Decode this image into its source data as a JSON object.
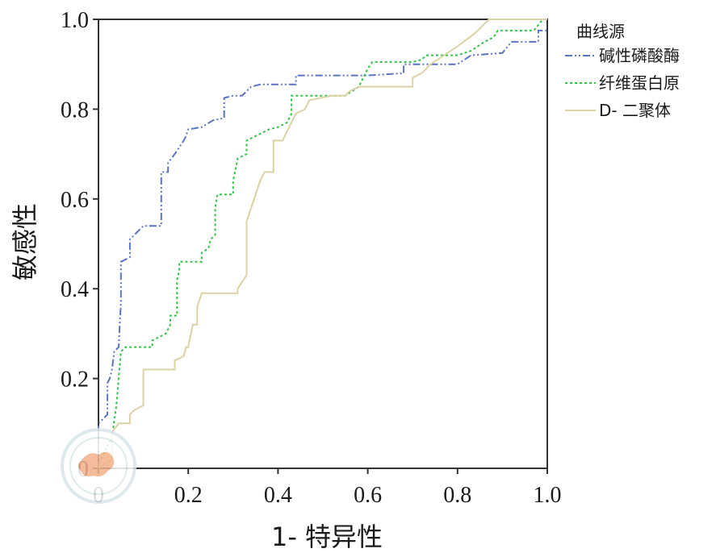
{
  "chart_data": {
    "type": "line",
    "title": "",
    "xlabel": "1- 特异性",
    "ylabel": "敏感性",
    "xlim": [
      0,
      1
    ],
    "ylim": [
      0,
      1
    ],
    "x_ticks": [
      "0",
      "0.2",
      "0.4",
      "0.6",
      "0.8",
      "1.0"
    ],
    "y_ticks": [
      "0",
      "0.2",
      "0.4",
      "0.6",
      "0.8",
      "1.0"
    ],
    "grid": false,
    "legend": {
      "title": "曲线源",
      "position": "right"
    },
    "series": [
      {
        "name": "碱性磷酸酶",
        "color": "#5b73c4",
        "dash": "dash-dot-dot",
        "points": [
          [
            0,
            0
          ],
          [
            0,
            0.1
          ],
          [
            0.01,
            0.11
          ],
          [
            0.02,
            0.12
          ],
          [
            0.02,
            0.19
          ],
          [
            0.025,
            0.2
          ],
          [
            0.03,
            0.22
          ],
          [
            0.035,
            0.26
          ],
          [
            0.045,
            0.27
          ],
          [
            0.05,
            0.37
          ],
          [
            0.05,
            0.46
          ],
          [
            0.07,
            0.47
          ],
          [
            0.07,
            0.51
          ],
          [
            0.08,
            0.52
          ],
          [
            0.09,
            0.53
          ],
          [
            0.1,
            0.54
          ],
          [
            0.14,
            0.54
          ],
          [
            0.14,
            0.66
          ],
          [
            0.155,
            0.66
          ],
          [
            0.155,
            0.68
          ],
          [
            0.17,
            0.7
          ],
          [
            0.19,
            0.73
          ],
          [
            0.195,
            0.74
          ],
          [
            0.2,
            0.755
          ],
          [
            0.23,
            0.76
          ],
          [
            0.255,
            0.775
          ],
          [
            0.28,
            0.78
          ],
          [
            0.28,
            0.825
          ],
          [
            0.3,
            0.83
          ],
          [
            0.32,
            0.83
          ],
          [
            0.34,
            0.85
          ],
          [
            0.36,
            0.855
          ],
          [
            0.44,
            0.855
          ],
          [
            0.44,
            0.875
          ],
          [
            0.5,
            0.875
          ],
          [
            0.6,
            0.875
          ],
          [
            0.68,
            0.88
          ],
          [
            0.68,
            0.9
          ],
          [
            0.8,
            0.9
          ],
          [
            0.83,
            0.92
          ],
          [
            0.9,
            0.925
          ],
          [
            0.92,
            0.95
          ],
          [
            0.98,
            0.95
          ],
          [
            0.98,
            0.975
          ],
          [
            1.0,
            0.975
          ]
        ]
      },
      {
        "name": "纤维蛋白原",
        "color": "#33c24a",
        "dash": "dotted",
        "points": [
          [
            0,
            0
          ],
          [
            0,
            0.01
          ],
          [
            0.03,
            0.07
          ],
          [
            0.04,
            0.14
          ],
          [
            0.045,
            0.2
          ],
          [
            0.05,
            0.26
          ],
          [
            0.06,
            0.27
          ],
          [
            0.12,
            0.27
          ],
          [
            0.12,
            0.285
          ],
          [
            0.13,
            0.29
          ],
          [
            0.15,
            0.3
          ],
          [
            0.16,
            0.32
          ],
          [
            0.16,
            0.34
          ],
          [
            0.175,
            0.34
          ],
          [
            0.175,
            0.42
          ],
          [
            0.18,
            0.44
          ],
          [
            0.18,
            0.46
          ],
          [
            0.23,
            0.46
          ],
          [
            0.23,
            0.48
          ],
          [
            0.245,
            0.49
          ],
          [
            0.25,
            0.51
          ],
          [
            0.26,
            0.52
          ],
          [
            0.26,
            0.58
          ],
          [
            0.265,
            0.61
          ],
          [
            0.3,
            0.61
          ],
          [
            0.3,
            0.64
          ],
          [
            0.31,
            0.69
          ],
          [
            0.33,
            0.7
          ],
          [
            0.33,
            0.73
          ],
          [
            0.35,
            0.74
          ],
          [
            0.38,
            0.755
          ],
          [
            0.4,
            0.76
          ],
          [
            0.42,
            0.77
          ],
          [
            0.43,
            0.79
          ],
          [
            0.43,
            0.83
          ],
          [
            0.47,
            0.83
          ],
          [
            0.55,
            0.83
          ],
          [
            0.58,
            0.85
          ],
          [
            0.6,
            0.89
          ],
          [
            0.61,
            0.905
          ],
          [
            0.7,
            0.905
          ],
          [
            0.72,
            0.91
          ],
          [
            0.73,
            0.92
          ],
          [
            0.8,
            0.92
          ],
          [
            0.83,
            0.93
          ],
          [
            0.86,
            0.95
          ],
          [
            0.88,
            0.96
          ],
          [
            0.89,
            0.975
          ],
          [
            0.97,
            0.975
          ],
          [
            0.99,
            1.0
          ],
          [
            1.0,
            1.0
          ]
        ]
      },
      {
        "name": "D- 二聚体",
        "color": "#dcd2a5",
        "dash": "solid",
        "points": [
          [
            0,
            0
          ],
          [
            0.03,
            0.02
          ],
          [
            0.03,
            0.08
          ],
          [
            0.045,
            0.1
          ],
          [
            0.07,
            0.1
          ],
          [
            0.07,
            0.12
          ],
          [
            0.08,
            0.13
          ],
          [
            0.1,
            0.14
          ],
          [
            0.1,
            0.22
          ],
          [
            0.17,
            0.22
          ],
          [
            0.17,
            0.24
          ],
          [
            0.19,
            0.25
          ],
          [
            0.195,
            0.27
          ],
          [
            0.2,
            0.27
          ],
          [
            0.21,
            0.32
          ],
          [
            0.22,
            0.32
          ],
          [
            0.22,
            0.36
          ],
          [
            0.23,
            0.39
          ],
          [
            0.25,
            0.39
          ],
          [
            0.31,
            0.39
          ],
          [
            0.31,
            0.4
          ],
          [
            0.33,
            0.43
          ],
          [
            0.33,
            0.55
          ],
          [
            0.36,
            0.64
          ],
          [
            0.37,
            0.66
          ],
          [
            0.39,
            0.66
          ],
          [
            0.39,
            0.73
          ],
          [
            0.41,
            0.73
          ],
          [
            0.42,
            0.75
          ],
          [
            0.43,
            0.77
          ],
          [
            0.44,
            0.79
          ],
          [
            0.46,
            0.8
          ],
          [
            0.47,
            0.82
          ],
          [
            0.52,
            0.83
          ],
          [
            0.55,
            0.83
          ],
          [
            0.56,
            0.84
          ],
          [
            0.58,
            0.85
          ],
          [
            0.6,
            0.85
          ],
          [
            0.7,
            0.85
          ],
          [
            0.7,
            0.87
          ],
          [
            0.72,
            0.88
          ],
          [
            0.74,
            0.9
          ],
          [
            0.77,
            0.92
          ],
          [
            0.8,
            0.94
          ],
          [
            0.84,
            0.97
          ],
          [
            0.86,
            0.99
          ],
          [
            0.87,
            1.0
          ],
          [
            1.0,
            1.0
          ]
        ]
      }
    ]
  }
}
